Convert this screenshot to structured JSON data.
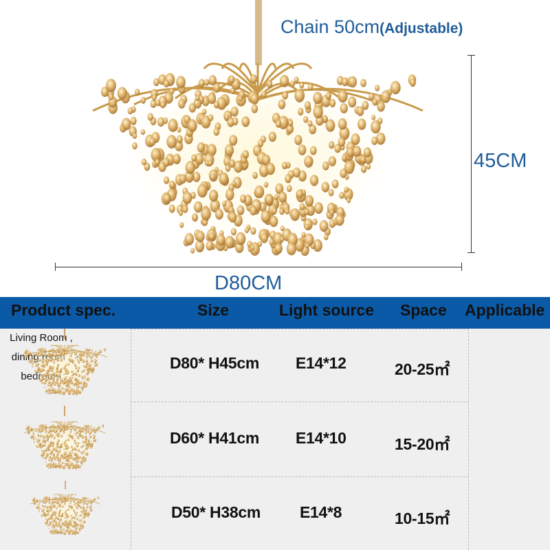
{
  "dimensions": {
    "chain": "Chain 50cm",
    "chain_note": "(Adjustable)",
    "height": "45CM",
    "width": "D80CM"
  },
  "colors": {
    "header_bg": "#0b5aa7",
    "label_blue": "#1f5c99",
    "table_bg": "#efefef",
    "crystal": "#d9a85a"
  },
  "table": {
    "headers": [
      "Product spec.",
      "Size",
      "Light source",
      "Space",
      "Applicable"
    ],
    "rows": [
      {
        "image": "chandelier-d80",
        "size": "D80* H45cm",
        "light": "E14*12",
        "space": "20-25㎡"
      },
      {
        "image": "chandelier-d60",
        "size": "D60* H41cm",
        "light": "E14*10",
        "space": "15-20㎡"
      },
      {
        "image": "chandelier-d50",
        "size": "D50* H38cm",
        "light": "E14*8",
        "space": "10-15㎡"
      }
    ],
    "applicable": [
      "Living Room ,",
      "dining room ,",
      "bedroom"
    ]
  }
}
